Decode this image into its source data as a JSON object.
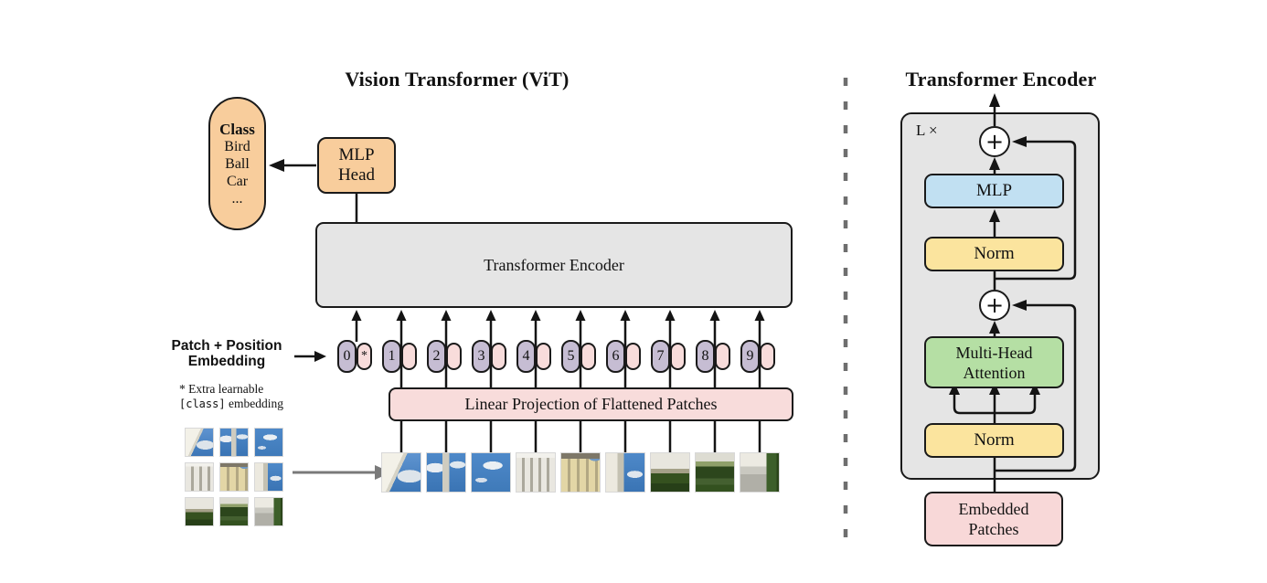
{
  "colors": {
    "orange": "#f8cd9c",
    "pink": "#f8dcdb",
    "purple": "#c6bdd3",
    "panel_gray": "#e5e5e5",
    "blue": "#c1e0f2",
    "yellow": "#fbe49e",
    "green": "#b5dfa4",
    "ep_pink": "#f8d8d8",
    "line_black": "#141414",
    "divider_gray": "#6e6e6e",
    "arrow_gray": "#7a7a7a"
  },
  "left": {
    "title": "Vision Transformer (ViT)",
    "class_pill": {
      "header": "Class",
      "items": [
        "Bird",
        "Ball",
        "Car",
        "..."
      ]
    },
    "mlp_head_label": "MLP\nHead",
    "encoder_label": "Transformer Encoder",
    "patch_position_label": "Patch + Position\nEmbedding",
    "footnote_line1": "* Extra learnable",
    "footnote_code": "[class]",
    "footnote_line2_rest": " embedding",
    "linear_projection_label": "Linear Projection of Flattened Patches",
    "tokens": [
      {
        "label": "0",
        "star": "*"
      },
      {
        "label": "1",
        "star": ""
      },
      {
        "label": "2",
        "star": ""
      },
      {
        "label": "3",
        "star": ""
      },
      {
        "label": "4",
        "star": ""
      },
      {
        "label": "5",
        "star": ""
      },
      {
        "label": "6",
        "star": ""
      },
      {
        "label": "7",
        "star": ""
      },
      {
        "label": "8",
        "star": ""
      },
      {
        "label": "9",
        "star": ""
      }
    ]
  },
  "patch_kinds": [
    {
      "kind": "p1",
      "name": "building-cornice-sky"
    },
    {
      "kind": "p2",
      "name": "tower-spire-clouds"
    },
    {
      "kind": "p3",
      "name": "blue-sky-cloud"
    },
    {
      "kind": "p4",
      "name": "white-facade-windows"
    },
    {
      "kind": "p5",
      "name": "yellow-facade-tower"
    },
    {
      "kind": "p6",
      "name": "tower-and-sky"
    },
    {
      "kind": "p7",
      "name": "building-over-hedge"
    },
    {
      "kind": "p8",
      "name": "garden-hedges"
    },
    {
      "kind": "p9",
      "name": "path-and-tree"
    }
  ],
  "right": {
    "title": "Transformer Encoder",
    "repeat_label": "L ×",
    "plus_top": "+",
    "plus_mid": "+",
    "mlp_label": "MLP",
    "norm_top_label": "Norm",
    "mha_label": "Multi-Head\nAttention",
    "norm_bottom_label": "Norm",
    "embedded_label": "Embedded\nPatches"
  }
}
